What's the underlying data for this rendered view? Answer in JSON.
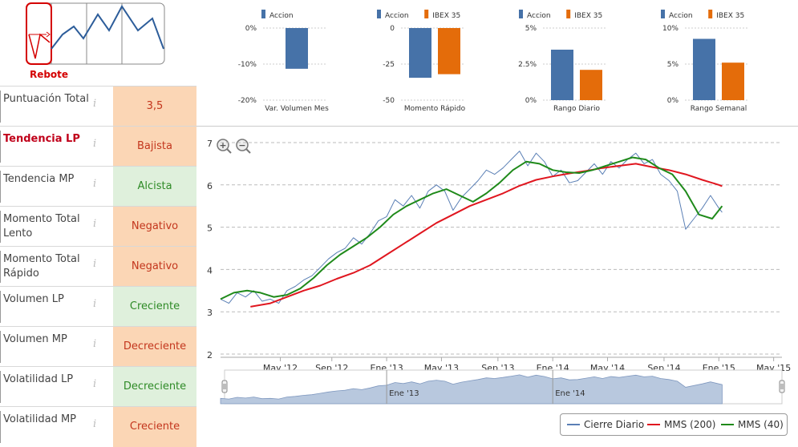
{
  "pattern": {
    "label": "Rebote",
    "icon": "pattern-rebound-icon"
  },
  "indicators": [
    {
      "label": "Puntuación Total",
      "value": "3,5",
      "status": "neutral",
      "highlight": false
    },
    {
      "label": "Tendencia LP",
      "value": "Bajista",
      "status": "negative",
      "highlight": true
    },
    {
      "label": "Tendencia MP",
      "value": "Alcista",
      "status": "positive",
      "highlight": false
    },
    {
      "label": "Momento Total Lento",
      "value": "Negativo",
      "status": "negative",
      "highlight": false
    },
    {
      "label": "Momento Total Rápido",
      "value": "Negativo",
      "status": "negative",
      "highlight": false
    },
    {
      "label": "Volumen LP",
      "value": "Creciente",
      "status": "positive",
      "highlight": false
    },
    {
      "label": "Volumen MP",
      "value": "Decreciente",
      "status": "negative",
      "highlight": false
    },
    {
      "label": "Volatilidad LP",
      "value": "Decreciente",
      "status": "positive",
      "highlight": false
    },
    {
      "label": "Volatilidad MP",
      "value": "Creciente",
      "status": "negative",
      "highlight": false
    }
  ],
  "info_glyph": "i",
  "colors": {
    "accion": "#4672a8",
    "ibex": "#e46c0a",
    "close": "#5a7fb5",
    "mms200": "#e0161f",
    "mms40": "#1f8a1a",
    "nav_fill": "#b8c8de"
  },
  "chart_data": [
    {
      "type": "bar",
      "title": "",
      "xlabel": "Var. Volumen Mes",
      "legend": [
        "Accion"
      ],
      "ylim": [
        -20,
        0
      ],
      "ticks": [
        0,
        -10,
        -20
      ],
      "tick_labels": [
        "0%",
        "-10%",
        "-20%"
      ],
      "series": [
        {
          "name": "Accion",
          "values": [
            -11.3
          ]
        }
      ]
    },
    {
      "type": "bar",
      "title": "",
      "xlabel": "Momento Rápido",
      "legend": [
        "Accion",
        "IBEX 35"
      ],
      "ylim": [
        -50,
        0
      ],
      "ticks": [
        0,
        -25,
        -50
      ],
      "tick_labels": [
        "0",
        "-25",
        "-50"
      ],
      "series": [
        {
          "name": "Accion",
          "values": [
            -34.5
          ]
        },
        {
          "name": "IBEX 35",
          "values": [
            -32
          ]
        }
      ]
    },
    {
      "type": "bar",
      "title": "",
      "xlabel": "Rango Diario",
      "legend": [
        "Accion",
        "IBEX 35"
      ],
      "ylim": [
        0,
        5
      ],
      "ticks": [
        5,
        2.5,
        0
      ],
      "tick_labels": [
        "5%",
        "2.5%",
        "0%"
      ],
      "series": [
        {
          "name": "Accion",
          "values": [
            3.5
          ]
        },
        {
          "name": "IBEX 35",
          "values": [
            2.1
          ]
        }
      ]
    },
    {
      "type": "bar",
      "title": "",
      "xlabel": "Rango Semanal",
      "legend": [
        "Accion",
        "IBEX 35"
      ],
      "ylim": [
        0,
        10
      ],
      "ticks": [
        10,
        5,
        0
      ],
      "tick_labels": [
        "10%",
        "5%",
        "0%"
      ],
      "series": [
        {
          "name": "Accion",
          "values": [
            8.5
          ]
        },
        {
          "name": "IBEX 35",
          "values": [
            5.2
          ]
        }
      ]
    },
    {
      "type": "line",
      "title": "",
      "xlabel": "",
      "ylabel": "",
      "ylim": [
        2,
        7
      ],
      "yticks": [
        2,
        3,
        4,
        5,
        6,
        7
      ],
      "xlim": [
        2012.0,
        2015.38
      ],
      "xticks": [
        {
          "t": 2012.36,
          "label": "May '12"
        },
        {
          "t": 2012.67,
          "label": "Sep '12"
        },
        {
          "t": 2013.0,
          "label": "Ene '13"
        },
        {
          "t": 2013.33,
          "label": "May '13"
        },
        {
          "t": 2013.67,
          "label": "Sep '13"
        },
        {
          "t": 2014.0,
          "label": "Ene '14"
        },
        {
          "t": 2014.33,
          "label": "May '14"
        },
        {
          "t": 2014.67,
          "label": "Sep '14"
        },
        {
          "t": 2015.0,
          "label": "Ene '15"
        },
        {
          "t": 2015.33,
          "label": "May '15"
        }
      ],
      "navigator_labels": [
        {
          "t": 2013.0,
          "label": "Ene '13"
        },
        {
          "t": 2014.0,
          "label": "Ene '14"
        }
      ],
      "zoom_in_label": "+",
      "zoom_out_label": "−",
      "legend": [
        "Cierre Diario",
        "MMS (200)",
        "MMS (40)"
      ],
      "series": [
        {
          "name": "Cierre Diario",
          "x": [
            2012.0,
            2012.05,
            2012.1,
            2012.15,
            2012.2,
            2012.25,
            2012.3,
            2012.35,
            2012.4,
            2012.45,
            2012.5,
            2012.55,
            2012.6,
            2012.65,
            2012.7,
            2012.75,
            2012.8,
            2012.85,
            2012.9,
            2012.95,
            2013.0,
            2013.05,
            2013.1,
            2013.15,
            2013.2,
            2013.25,
            2013.3,
            2013.35,
            2013.4,
            2013.45,
            2013.5,
            2013.55,
            2013.6,
            2013.65,
            2013.7,
            2013.75,
            2013.8,
            2013.85,
            2013.9,
            2013.95,
            2014.0,
            2014.05,
            2014.1,
            2014.15,
            2014.2,
            2014.25,
            2014.3,
            2014.35,
            2014.4,
            2014.45,
            2014.5,
            2014.55,
            2014.6,
            2014.65,
            2014.7,
            2014.75,
            2014.8,
            2014.85,
            2014.9,
            2014.95,
            2015.0,
            2015.02
          ],
          "values": [
            3.3,
            3.2,
            3.45,
            3.35,
            3.5,
            3.25,
            3.3,
            3.2,
            3.5,
            3.6,
            3.75,
            3.85,
            4.05,
            4.25,
            4.4,
            4.5,
            4.75,
            4.6,
            4.85,
            5.15,
            5.25,
            5.65,
            5.5,
            5.75,
            5.45,
            5.85,
            6.0,
            5.85,
            5.4,
            5.7,
            5.9,
            6.1,
            6.35,
            6.25,
            6.4,
            6.6,
            6.8,
            6.45,
            6.75,
            6.55,
            6.2,
            6.35,
            6.05,
            6.1,
            6.3,
            6.5,
            6.25,
            6.55,
            6.4,
            6.6,
            6.75,
            6.5,
            6.6,
            6.25,
            6.1,
            5.85,
            4.95,
            5.2,
            5.45,
            5.75,
            5.45,
            5.35
          ]
        },
        {
          "name": "MMS (200)",
          "x": [
            2012.18,
            2012.3,
            2012.4,
            2012.5,
            2012.6,
            2012.7,
            2012.8,
            2012.9,
            2013.0,
            2013.1,
            2013.2,
            2013.3,
            2013.4,
            2013.5,
            2013.6,
            2013.7,
            2013.8,
            2013.9,
            2014.0,
            2014.1,
            2014.2,
            2014.3,
            2014.4,
            2014.5,
            2014.6,
            2014.7,
            2014.8,
            2014.9,
            2015.0,
            2015.02
          ],
          "values": [
            3.12,
            3.2,
            3.35,
            3.5,
            3.62,
            3.78,
            3.92,
            4.1,
            4.35,
            4.6,
            4.85,
            5.1,
            5.3,
            5.5,
            5.65,
            5.8,
            5.98,
            6.12,
            6.2,
            6.27,
            6.33,
            6.4,
            6.45,
            6.5,
            6.42,
            6.35,
            6.25,
            6.12,
            6.0,
            5.97
          ]
        },
        {
          "name": "MMS (40)",
          "x": [
            2012.0,
            2012.08,
            2012.16,
            2012.24,
            2012.32,
            2012.4,
            2012.48,
            2012.56,
            2012.64,
            2012.72,
            2012.8,
            2012.88,
            2012.96,
            2013.04,
            2013.12,
            2013.2,
            2013.28,
            2013.36,
            2013.44,
            2013.52,
            2013.6,
            2013.68,
            2013.76,
            2013.84,
            2013.92,
            2014.0,
            2014.08,
            2014.16,
            2014.24,
            2014.32,
            2014.4,
            2014.48,
            2014.56,
            2014.64,
            2014.72,
            2014.8,
            2014.88,
            2014.96,
            2015.0,
            2015.02
          ],
          "values": [
            3.3,
            3.45,
            3.5,
            3.45,
            3.35,
            3.4,
            3.55,
            3.8,
            4.1,
            4.35,
            4.55,
            4.75,
            5.0,
            5.3,
            5.5,
            5.65,
            5.8,
            5.9,
            5.75,
            5.6,
            5.8,
            6.05,
            6.35,
            6.55,
            6.5,
            6.35,
            6.3,
            6.28,
            6.35,
            6.45,
            6.55,
            6.65,
            6.6,
            6.4,
            6.25,
            5.85,
            5.3,
            5.2,
            5.4,
            5.5
          ]
        }
      ]
    }
  ]
}
